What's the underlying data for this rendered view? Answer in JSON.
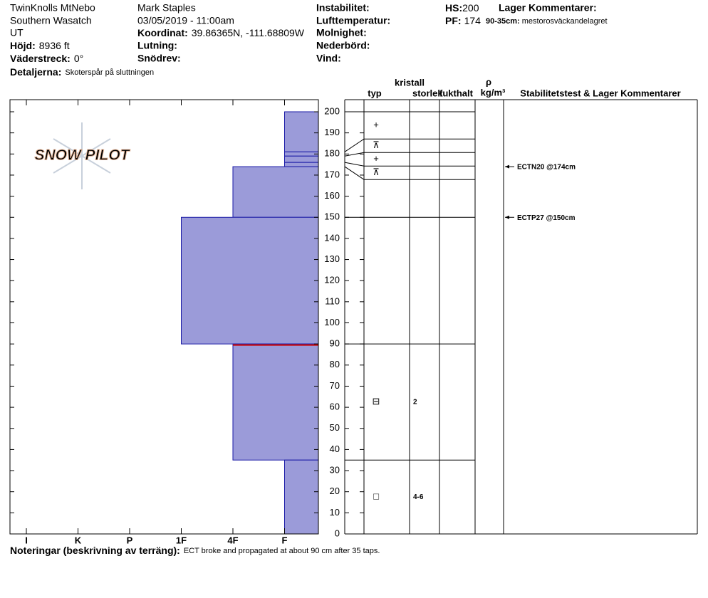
{
  "header": {
    "location": "TwinKnolls MtNebo",
    "range": "Southern Wasatch",
    "state": "UT",
    "elevation": {
      "label": "Höjd:",
      "value": "8936 ft"
    },
    "aspect": {
      "label": "Väderstreck:",
      "value": "0°"
    },
    "details": {
      "label": "Detaljerna:",
      "value": "Skoterspår på sluttningen"
    },
    "observer": "Mark Staples",
    "datetime": "03/05/2019 - 11:00am",
    "coordinates": {
      "label": "Koordinat:",
      "value": "39.86365N, -111.68809W"
    },
    "slope": {
      "label": "Lutning:"
    },
    "wind_loading": {
      "label": "Snödrev:"
    },
    "instability": {
      "label": "Instabilitet:"
    },
    "air_temp": {
      "label": "Lufttemperatur:"
    },
    "sky": {
      "label": "Molnighet:"
    },
    "precip": {
      "label": "Nederbörd:"
    },
    "wind": {
      "label": "Vind:"
    },
    "hs": {
      "label": "HS:",
      "value": 200
    },
    "pf": {
      "label": "PF:",
      "value": 174
    },
    "layer_comments": {
      "title": "Lager Kommentarer:",
      "items": [
        {
          "label": "90-35cm:",
          "text": "mestorosväckandelagret"
        }
      ]
    }
  },
  "chart_data": {
    "type": "snow-profile",
    "logo": "SNOW PILOT",
    "ylim": [
      0,
      200
    ],
    "yticks": [
      0,
      10,
      20,
      30,
      40,
      50,
      60,
      70,
      80,
      90,
      100,
      110,
      120,
      130,
      140,
      150,
      160,
      170,
      180,
      190,
      200
    ],
    "hardness_categories": [
      "I",
      "K",
      "P",
      "1F",
      "4F",
      "F"
    ],
    "bar_color": "#9b9bd9",
    "columns": {
      "crystal": "kristall",
      "type": "typ",
      "size": "storlek",
      "moisture": "fukthalt",
      "density_symbol": "ρ",
      "density_unit": "kg/m³",
      "stability": "Stabilitetstest & Lager Kommentarer"
    },
    "layers": [
      {
        "top": 200,
        "bottom": 181,
        "hardness": "F",
        "grain": "+"
      },
      {
        "top": 181,
        "bottom": 179,
        "hardness": "F",
        "grain": "⊼"
      },
      {
        "top": 179,
        "bottom": 176,
        "hardness": "F",
        "grain": "+"
      },
      {
        "top": 176,
        "bottom": 174,
        "hardness": "F",
        "grain": "⊼"
      },
      {
        "top": 174,
        "bottom": 150,
        "hardness": "4F"
      },
      {
        "top": 150,
        "bottom": 90,
        "hardness": "1F"
      },
      {
        "top": 90,
        "bottom": 35,
        "hardness": "4F",
        "grain": "⊟",
        "size": "2"
      },
      {
        "top": 35,
        "bottom": 0,
        "hardness": "F",
        "grain": "□",
        "size": "4-6"
      }
    ],
    "concern_layer": {
      "top": 90,
      "bottom": 35,
      "color": "#cc0000"
    },
    "stability_tests": [
      {
        "height": 174,
        "label": "ECTN20 @174cm"
      },
      {
        "height": 150,
        "label": "ECTP27 @150cm"
      }
    ]
  },
  "footer": {
    "label": "Noteringar (beskrivning av terräng):",
    "text": "ECT broke and propagated at about 90 cm after 35 taps."
  }
}
